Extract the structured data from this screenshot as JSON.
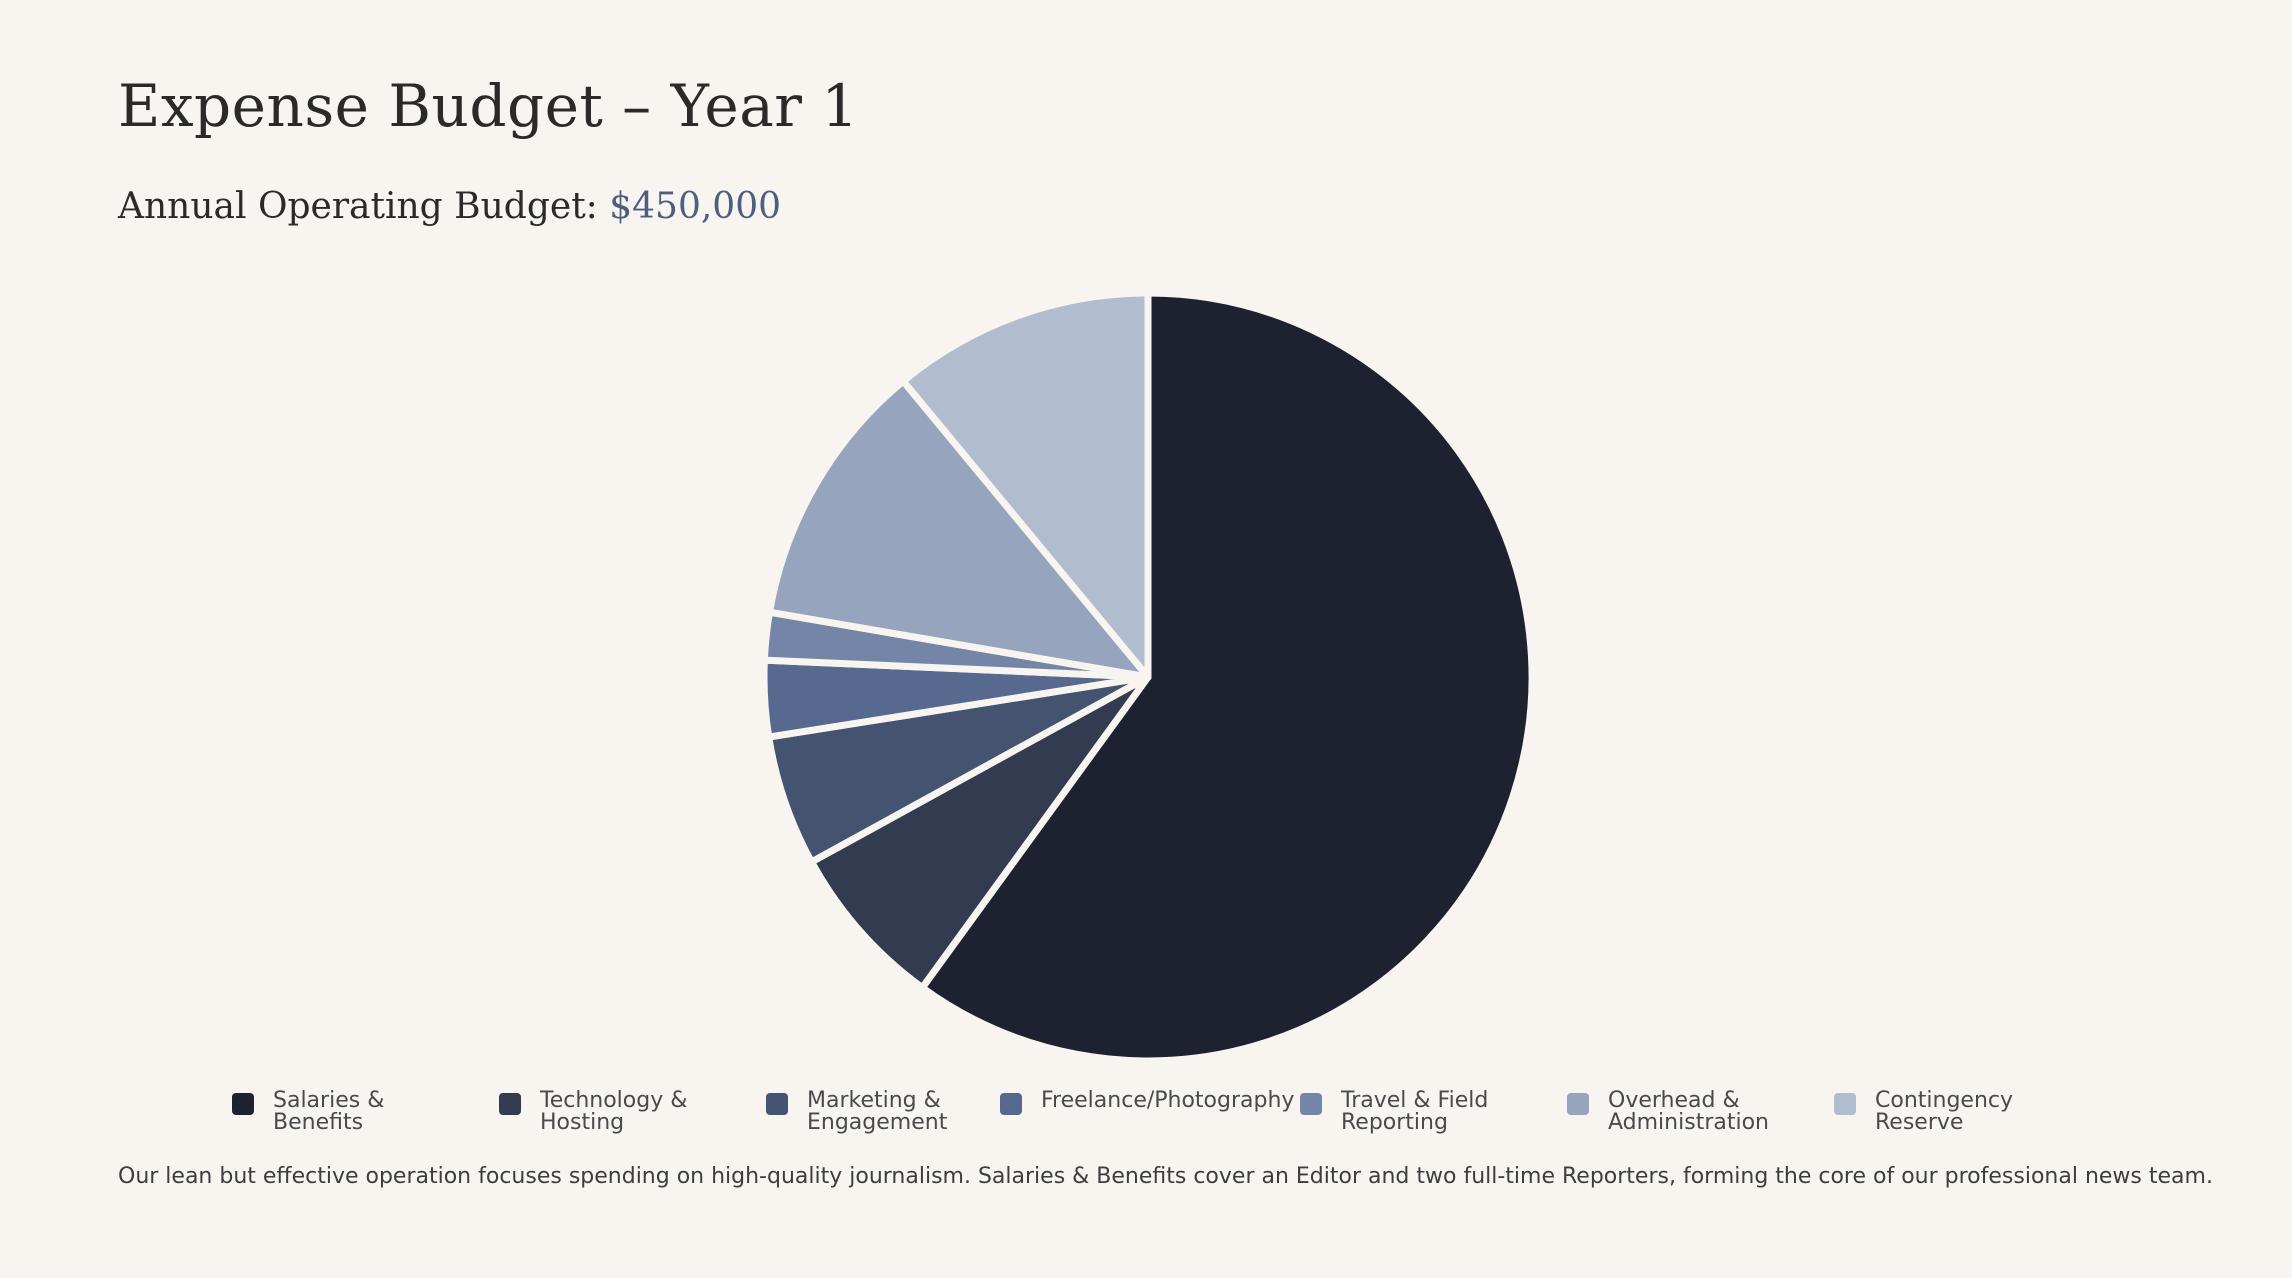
{
  "page": {
    "title": "Expense Budget – Year 1",
    "subtitle_label": "Annual Operating Budget: ",
    "subtitle_amount": "$450,000",
    "description": "Our lean but effective operation focuses spending on high-quality journalism. Salaries & Benefits cover an Editor and two full-time Reporters, forming the core of our professional news team."
  },
  "colors": {
    "background": "#f8f5f1",
    "amount": "#4f5e7e",
    "slice_border": "#f8f5f1"
  },
  "chart_data": {
    "type": "pie",
    "title": "Expense Budget – Year 1",
    "unit": "percent of $450,000",
    "start": "top, clockwise",
    "categories": [
      "Salaries & Benefits",
      "Technology & Hosting",
      "Marketing & Engagement",
      "Freelance/Photography",
      "Travel & Field Reporting",
      "Overhead & Administration",
      "Contingency Reserve"
    ],
    "values": [
      60,
      7,
      5.5,
      3.2,
      2,
      11.3,
      11
    ],
    "colors": [
      "#1e2230",
      "#323b50",
      "#445370",
      "#586990",
      "#7585a8",
      "#96a5bd",
      "#b2bccf"
    ],
    "legend_position": "bottom"
  }
}
